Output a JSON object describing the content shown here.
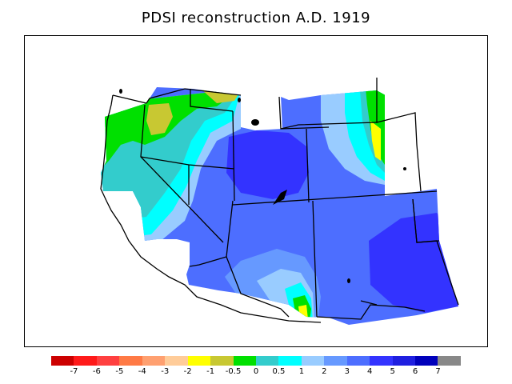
{
  "title": "PDSI reconstruction A.D. 1919",
  "legend": {
    "colors": [
      "#cc0000",
      "#ff1a1a",
      "#ff4040",
      "#ff7a45",
      "#ffa070",
      "#ffcc99",
      "#ffff00",
      "#c8c832",
      "#00e000",
      "#33cccc",
      "#00ffff",
      "#99ccff",
      "#6699ff",
      "#4d6eff",
      "#3333ff",
      "#1f1fe0",
      "#0000bb",
      "#888888"
    ],
    "labels": [
      "-7",
      "-6",
      "-5",
      "-4",
      "-3",
      "-2",
      "-1",
      "-0.5",
      "0",
      "0.5",
      "1",
      "2",
      "3",
      "4",
      "5",
      "6",
      "7"
    ]
  },
  "map": {
    "region": "western United States",
    "fill_colors": {
      "base": "#4d6eff",
      "wet_core": "#3333ff",
      "moderate": "#6699ff",
      "light": "#99ccff",
      "cyan": "#00ffff",
      "teal": "#33cccc",
      "green": "#00e000",
      "olive": "#c8c832",
      "yellow": "#ffff00"
    },
    "borders": "state boundaries and coastline in black"
  }
}
